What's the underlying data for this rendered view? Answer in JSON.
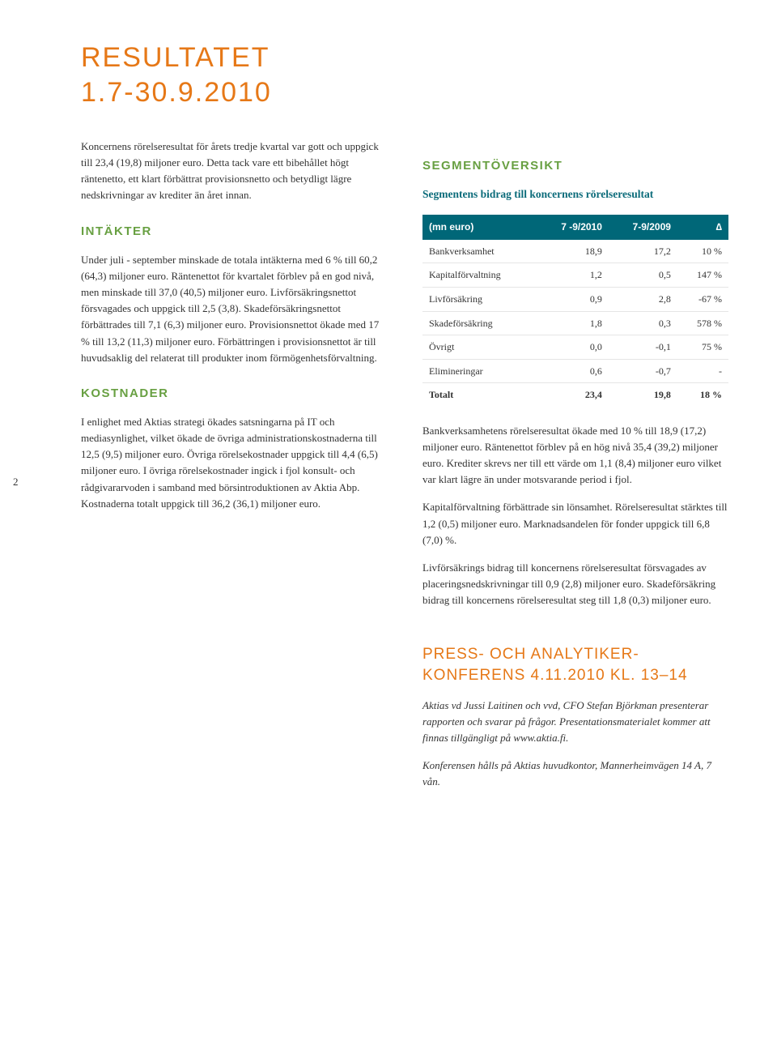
{
  "page_number": "2",
  "title_line1": "RESULTATET",
  "title_line2": "1.7-30.9.2010",
  "left": {
    "intro": "Koncernens rörelseresultat för årets tredje kvartal var gott och uppgick till 23,4 (19,8) miljoner euro. Detta tack vare ett bibehållet högt räntenetto, ett klart förbättrat provisionsnetto och betydligt lägre nedskrivningar av krediter än året innan.",
    "intakter_heading": "INTÄKTER",
    "intakter_body": "Under juli - september minskade de totala intäkterna med 6 % till 60,2 (64,3) miljoner euro. Räntenettot för kvartalet förblev på en god nivå, men minskade till 37,0 (40,5) miljoner euro. Livförsäkringsnettot försvagades och uppgick till 2,5 (3,8). Skadeförsäkringsnettot förbättrades till 7,1 (6,3) miljoner euro. Provisionsnettot ökade med 17 % till 13,2 (11,3) miljoner euro. Förbättringen i provisionsnettot är till huvudsaklig del relaterat till produkter inom förmögenhetsförvaltning.",
    "kostnader_heading": "KOSTNADER",
    "kostnader_body": "I enlighet med Aktias strategi ökades satsningarna på IT och mediasynlighet, vilket ökade de övriga administrationskostnaderna till 12,5 (9,5) miljoner euro. Övriga rörelsekostnader uppgick till 4,4 (6,5) miljoner euro. I övriga rörelsekostnader ingick i fjol konsult- och rådgivararvoden i samband med börsintroduktionen av Aktia Abp. Kostnaderna totalt uppgick till 36,2 (36,1) miljoner euro."
  },
  "right": {
    "segment_heading": "SEGMENTÖVERSIKT",
    "segment_sub": "Segmentens bidrag till koncernens rörelseresultat",
    "table": {
      "header_bg": "#006778",
      "columns": [
        "(mn euro)",
        "7 -9/2010",
        "7-9/2009",
        "∆"
      ],
      "rows": [
        [
          "Bankverksamhet",
          "18,9",
          "17,2",
          "10 %"
        ],
        [
          "Kapitalförvaltning",
          "1,2",
          "0,5",
          "147 %"
        ],
        [
          "Livförsäkring",
          "0,9",
          "2,8",
          "-67 %"
        ],
        [
          "Skadeförsäkring",
          "1,8",
          "0,3",
          "578 %"
        ],
        [
          "Övrigt",
          "0,0",
          "-0,1",
          "75 %"
        ],
        [
          "Elimineringar",
          "0,6",
          "-0,7",
          "-"
        ]
      ],
      "total": [
        "Totalt",
        "23,4",
        "19,8",
        "18 %"
      ]
    },
    "body1": "Bankverksamhetens rörelseresultat ökade med 10 % till 18,9 (17,2) miljoner euro. Räntenettot förblev på en hög nivå 35,4 (39,2) miljoner euro. Krediter skrevs ner till ett värde om 1,1 (8,4) miljoner euro vilket var klart lägre än under motsvarande period i fjol.",
    "body2": "Kapitalförvaltning förbättrade sin lönsamhet. Rörelseresultat stärktes till 1,2 (0,5) miljoner euro. Marknadsandelen för fonder uppgick till 6,8 (7,0) %.",
    "body3": "Livförsäkrings bidrag till koncernens rörelseresultat försvagades av placeringsnedskrivningar till 0,9 (2,8) miljoner euro. Skadeförsäkring bidrag till koncernens rörelseresultat steg till 1,8 (0,3) miljoner euro.",
    "press_heading": "PRESS- OCH ANALYTIKER-KONFERENS 4.11.2010 KL. 13–14",
    "press_body1": "Aktias vd Jussi Laitinen och vvd, CFO Stefan Björkman presenterar rapporten och svarar på frågor. Presentationsmaterialet kommer att finnas tillgängligt på www.aktia.fi.",
    "press_body2": "Konferensen hålls på Aktias huvudkontor, Mannerheimvägen 14 A, 7 vån."
  }
}
